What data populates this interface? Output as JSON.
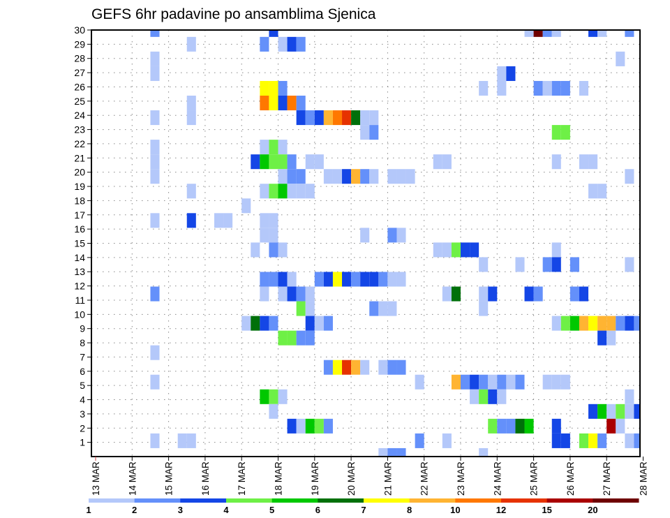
{
  "chart_data": {
    "type": "heatmap",
    "title": "GEFS 6hr padavine po ansamblima Sjenica",
    "xlabel": "",
    "ylabel": "",
    "x_ticks": [
      "13 MAR",
      "14 MAR",
      "15 MAR",
      "16 MAR",
      "17 MAR",
      "18 MAR",
      "19 MAR",
      "20 MAR",
      "21 MAR",
      "22 MAR",
      "23 MAR",
      "24 MAR",
      "25 MAR",
      "26 MAR",
      "27 MAR",
      "28 MAR"
    ],
    "x_step": "6hr",
    "y_ticks": [
      1,
      2,
      3,
      4,
      5,
      6,
      7,
      8,
      9,
      10,
      11,
      12,
      13,
      14,
      15,
      16,
      17,
      18,
      19,
      20,
      21,
      22,
      23,
      24,
      25,
      26,
      27,
      28,
      29,
      30
    ],
    "ylim": [
      0,
      30
    ],
    "grid": true,
    "legend_placement": "bottom",
    "colorbar": {
      "labels": [
        "1",
        "2",
        "3",
        "4",
        "5",
        "6",
        "7",
        "8",
        "10",
        "12",
        "15",
        "20"
      ],
      "colors": [
        "#b4c8fa",
        "#6490fa",
        "#1446e6",
        "#6ef046",
        "#00c800",
        "#00700a",
        "#ffff00",
        "#ffb432",
        "#ff7800",
        "#e63200",
        "#aa0000",
        "#6e0000"
      ]
    },
    "cells_format": "[6hr step index from 13 MAR 00, ensemble member, colour class 1-12]",
    "cells": [
      [
        6,
        30,
        2
      ],
      [
        19,
        30,
        3
      ],
      [
        47,
        30,
        1
      ],
      [
        48,
        30,
        12
      ],
      [
        49,
        30,
        2
      ],
      [
        50,
        30,
        1
      ],
      [
        54,
        30,
        3
      ],
      [
        55,
        30,
        1
      ],
      [
        58,
        30,
        2
      ],
      [
        10,
        29,
        1
      ],
      [
        18,
        29,
        2
      ],
      [
        20,
        29,
        1
      ],
      [
        21,
        29,
        3
      ],
      [
        22,
        29,
        2
      ],
      [
        6,
        28,
        1
      ],
      [
        57,
        28,
        1
      ],
      [
        6,
        27,
        1
      ],
      [
        44,
        27,
        1
      ],
      [
        45,
        27,
        3
      ],
      [
        18,
        26,
        7
      ],
      [
        19,
        26,
        7
      ],
      [
        20,
        26,
        2
      ],
      [
        42,
        26,
        1
      ],
      [
        44,
        26,
        1
      ],
      [
        48,
        26,
        2
      ],
      [
        49,
        26,
        1
      ],
      [
        50,
        26,
        2
      ],
      [
        51,
        26,
        2
      ],
      [
        53,
        26,
        1
      ],
      [
        10,
        25,
        1
      ],
      [
        18,
        25,
        9
      ],
      [
        19,
        25,
        7
      ],
      [
        20,
        25,
        3
      ],
      [
        21,
        25,
        9
      ],
      [
        22,
        25,
        2
      ],
      [
        6,
        24,
        1
      ],
      [
        10,
        24,
        1
      ],
      [
        22,
        24,
        3
      ],
      [
        23,
        24,
        2
      ],
      [
        24,
        24,
        3
      ],
      [
        25,
        24,
        8
      ],
      [
        26,
        24,
        9
      ],
      [
        27,
        24,
        10
      ],
      [
        28,
        24,
        6
      ],
      [
        29,
        24,
        1
      ],
      [
        30,
        24,
        1
      ],
      [
        29,
        23,
        1
      ],
      [
        30,
        23,
        2
      ],
      [
        50,
        23,
        4
      ],
      [
        51,
        23,
        4
      ],
      [
        6,
        22,
        1
      ],
      [
        18,
        22,
        1
      ],
      [
        19,
        22,
        4
      ],
      [
        20,
        22,
        1
      ],
      [
        6,
        21,
        1
      ],
      [
        17,
        21,
        3
      ],
      [
        18,
        21,
        5
      ],
      [
        19,
        21,
        4
      ],
      [
        20,
        21,
        4
      ],
      [
        21,
        21,
        2
      ],
      [
        23,
        21,
        1
      ],
      [
        24,
        21,
        1
      ],
      [
        37,
        21,
        1
      ],
      [
        38,
        21,
        1
      ],
      [
        50,
        21,
        1
      ],
      [
        53,
        21,
        1
      ],
      [
        54,
        21,
        1
      ],
      [
        6,
        20,
        1
      ],
      [
        20,
        20,
        1
      ],
      [
        21,
        20,
        2
      ],
      [
        22,
        20,
        2
      ],
      [
        25,
        20,
        1
      ],
      [
        26,
        20,
        1
      ],
      [
        27,
        20,
        3
      ],
      [
        28,
        20,
        8
      ],
      [
        29,
        20,
        2
      ],
      [
        30,
        20,
        1
      ],
      [
        32,
        20,
        1
      ],
      [
        33,
        20,
        1
      ],
      [
        34,
        20,
        1
      ],
      [
        58,
        20,
        1
      ],
      [
        10,
        19,
        1
      ],
      [
        18,
        19,
        1
      ],
      [
        19,
        19,
        4
      ],
      [
        20,
        19,
        5
      ],
      [
        21,
        19,
        1
      ],
      [
        22,
        19,
        1
      ],
      [
        23,
        19,
        1
      ],
      [
        54,
        19,
        1
      ],
      [
        55,
        19,
        1
      ],
      [
        16,
        18,
        1
      ],
      [
        6,
        17,
        1
      ],
      [
        10,
        17,
        3
      ],
      [
        13,
        17,
        1
      ],
      [
        14,
        17,
        1
      ],
      [
        18,
        17,
        1
      ],
      [
        19,
        17,
        1
      ],
      [
        18,
        16,
        1
      ],
      [
        19,
        16,
        1
      ],
      [
        29,
        16,
        1
      ],
      [
        32,
        16,
        2
      ],
      [
        33,
        16,
        1
      ],
      [
        17,
        15,
        1
      ],
      [
        19,
        15,
        2
      ],
      [
        20,
        15,
        1
      ],
      [
        37,
        15,
        1
      ],
      [
        38,
        15,
        1
      ],
      [
        39,
        15,
        4
      ],
      [
        40,
        15,
        3
      ],
      [
        41,
        15,
        3
      ],
      [
        50,
        15,
        1
      ],
      [
        42,
        14,
        1
      ],
      [
        46,
        14,
        1
      ],
      [
        49,
        14,
        2
      ],
      [
        50,
        14,
        3
      ],
      [
        52,
        14,
        2
      ],
      [
        58,
        14,
        1
      ],
      [
        18,
        13,
        2
      ],
      [
        19,
        13,
        2
      ],
      [
        20,
        13,
        3
      ],
      [
        21,
        13,
        1
      ],
      [
        24,
        13,
        2
      ],
      [
        25,
        13,
        3
      ],
      [
        26,
        13,
        7
      ],
      [
        27,
        13,
        3
      ],
      [
        28,
        13,
        2
      ],
      [
        29,
        13,
        3
      ],
      [
        30,
        13,
        3
      ],
      [
        31,
        13,
        2
      ],
      [
        32,
        13,
        1
      ],
      [
        33,
        13,
        1
      ],
      [
        6,
        12,
        2
      ],
      [
        18,
        12,
        1
      ],
      [
        20,
        12,
        1
      ],
      [
        21,
        12,
        3
      ],
      [
        22,
        12,
        2
      ],
      [
        23,
        12,
        1
      ],
      [
        38,
        12,
        1
      ],
      [
        39,
        12,
        6
      ],
      [
        42,
        12,
        1
      ],
      [
        43,
        12,
        3
      ],
      [
        47,
        12,
        3
      ],
      [
        48,
        12,
        2
      ],
      [
        52,
        12,
        2
      ],
      [
        53,
        12,
        3
      ],
      [
        22,
        11,
        4
      ],
      [
        23,
        11,
        1
      ],
      [
        30,
        11,
        2
      ],
      [
        31,
        11,
        1
      ],
      [
        32,
        11,
        1
      ],
      [
        42,
        11,
        1
      ],
      [
        16,
        10,
        1
      ],
      [
        17,
        10,
        6
      ],
      [
        18,
        10,
        3
      ],
      [
        19,
        10,
        2
      ],
      [
        23,
        10,
        3
      ],
      [
        24,
        10,
        1
      ],
      [
        25,
        10,
        2
      ],
      [
        50,
        10,
        1
      ],
      [
        51,
        10,
        4
      ],
      [
        52,
        10,
        5
      ],
      [
        53,
        10,
        8
      ],
      [
        54,
        10,
        7
      ],
      [
        55,
        10,
        8
      ],
      [
        56,
        10,
        8
      ],
      [
        57,
        10,
        2
      ],
      [
        58,
        10,
        3
      ],
      [
        59,
        10,
        2
      ],
      [
        20,
        9,
        4
      ],
      [
        21,
        9,
        4
      ],
      [
        22,
        9,
        2
      ],
      [
        23,
        9,
        2
      ],
      [
        55,
        9,
        3
      ],
      [
        56,
        9,
        1
      ],
      [
        6,
        8,
        1
      ],
      [
        25,
        7,
        2
      ],
      [
        26,
        7,
        7
      ],
      [
        27,
        7,
        10
      ],
      [
        28,
        7,
        8
      ],
      [
        29,
        7,
        1
      ],
      [
        31,
        7,
        1
      ],
      [
        32,
        7,
        2
      ],
      [
        33,
        7,
        2
      ],
      [
        6,
        6,
        1
      ],
      [
        35,
        6,
        1
      ],
      [
        39,
        6,
        8
      ],
      [
        40,
        6,
        2
      ],
      [
        41,
        6,
        3
      ],
      [
        42,
        6,
        2
      ],
      [
        43,
        6,
        1
      ],
      [
        44,
        6,
        2
      ],
      [
        45,
        6,
        1
      ],
      [
        46,
        6,
        2
      ],
      [
        49,
        6,
        1
      ],
      [
        50,
        6,
        1
      ],
      [
        51,
        6,
        1
      ],
      [
        18,
        5,
        5
      ],
      [
        19,
        5,
        4
      ],
      [
        20,
        5,
        1
      ],
      [
        41,
        5,
        1
      ],
      [
        42,
        5,
        4
      ],
      [
        43,
        5,
        3
      ],
      [
        44,
        5,
        1
      ],
      [
        58,
        5,
        1
      ],
      [
        19,
        4,
        1
      ],
      [
        54,
        4,
        3
      ],
      [
        55,
        4,
        5
      ],
      [
        56,
        4,
        1
      ],
      [
        57,
        4,
        4
      ],
      [
        58,
        4,
        1
      ],
      [
        59,
        4,
        3
      ],
      [
        21,
        3,
        3
      ],
      [
        22,
        3,
        1
      ],
      [
        23,
        3,
        5
      ],
      [
        24,
        3,
        4
      ],
      [
        25,
        3,
        2
      ],
      [
        43,
        3,
        4
      ],
      [
        44,
        3,
        2
      ],
      [
        45,
        3,
        2
      ],
      [
        46,
        3,
        6
      ],
      [
        47,
        3,
        5
      ],
      [
        50,
        3,
        3
      ],
      [
        56,
        3,
        11
      ],
      [
        57,
        3,
        1
      ],
      [
        6,
        2,
        1
      ],
      [
        9,
        2,
        1
      ],
      [
        10,
        2,
        1
      ],
      [
        35,
        2,
        2
      ],
      [
        38,
        2,
        1
      ],
      [
        50,
        2,
        3
      ],
      [
        51,
        2,
        3
      ],
      [
        53,
        2,
        4
      ],
      [
        54,
        2,
        7
      ],
      [
        55,
        2,
        2
      ],
      [
        58,
        2,
        1
      ],
      [
        59,
        2,
        2
      ],
      [
        31,
        1,
        1
      ],
      [
        32,
        1,
        2
      ],
      [
        33,
        1,
        2
      ],
      [
        42,
        1,
        1
      ]
    ]
  }
}
